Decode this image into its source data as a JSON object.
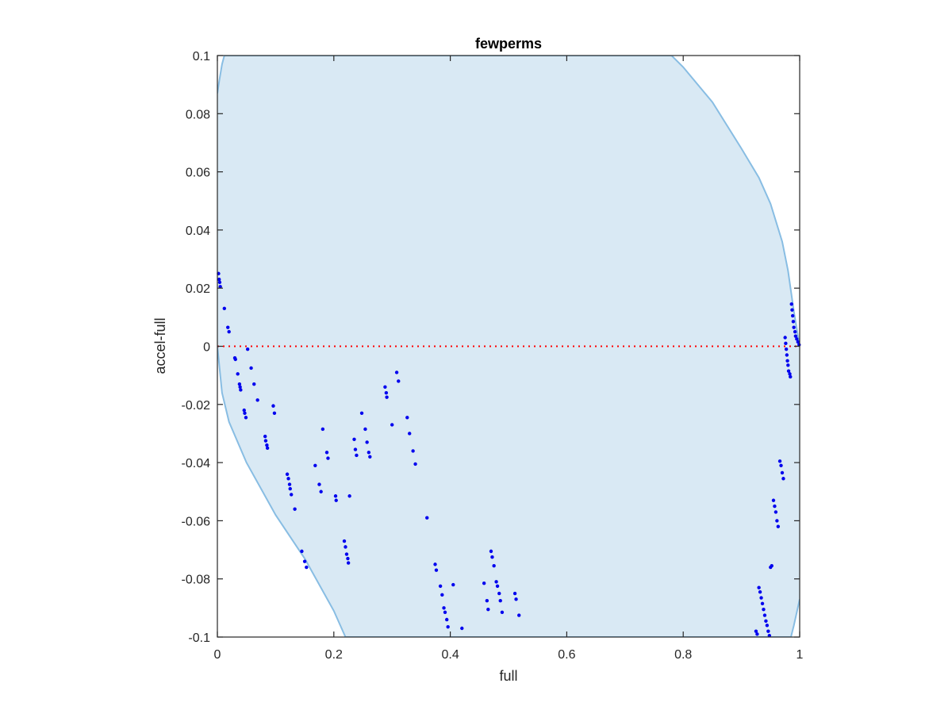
{
  "chart_data": {
    "type": "scatter",
    "title": "fewperms",
    "xlabel": "full",
    "ylabel": "accel-full",
    "xlim": [
      0,
      1
    ],
    "ylim": [
      -0.1,
      0.1
    ],
    "xticks": [
      0,
      0.2,
      0.4,
      0.6,
      0.8,
      1
    ],
    "xtick_labels": [
      "0",
      "0.2",
      "0.4",
      "0.6",
      "0.8",
      "1"
    ],
    "yticks": [
      -0.1,
      -0.08,
      -0.06,
      -0.04,
      -0.02,
      0,
      0.02,
      0.04,
      0.06,
      0.08,
      0.1
    ],
    "ytick_labels": [
      "-0.1",
      "-0.08",
      "-0.06",
      "-0.04",
      "-0.02",
      "0",
      "0.02",
      "0.04",
      "0.06",
      "0.08",
      "0.1"
    ],
    "grid": false,
    "reference_line": {
      "y": 0,
      "style": "dotted",
      "color": "#ff0000"
    },
    "colors": {
      "points": "#0000ee",
      "band_fill": "#d9e9f4",
      "band_edge": "#88bde3",
      "axes": "#262626"
    },
    "band": {
      "upper": [
        [
          0,
          0.087
        ],
        [
          0.003,
          0.091
        ],
        [
          0.008,
          0.097
        ],
        [
          0.012,
          0.1
        ],
        [
          0.78,
          0.1
        ],
        [
          0.8,
          0.096
        ],
        [
          0.85,
          0.084
        ],
        [
          0.9,
          0.068
        ],
        [
          0.93,
          0.058
        ],
        [
          0.95,
          0.049
        ],
        [
          0.97,
          0.036
        ],
        [
          0.98,
          0.026
        ],
        [
          0.99,
          0.012
        ],
        [
          1.0,
          0.0
        ]
      ],
      "lower": [
        [
          0,
          0.0
        ],
        [
          0.008,
          -0.016
        ],
        [
          0.02,
          -0.026
        ],
        [
          0.05,
          -0.04
        ],
        [
          0.1,
          -0.058
        ],
        [
          0.15,
          -0.073
        ],
        [
          0.2,
          -0.091
        ],
        [
          0.22,
          -0.1
        ],
        [
          0.985,
          -0.1
        ],
        [
          0.99,
          -0.096
        ],
        [
          1.0,
          -0.087
        ]
      ]
    },
    "points": [
      [
        0.002,
        0.025
      ],
      [
        0.003,
        0.023
      ],
      [
        0.004,
        0.022
      ],
      [
        0.005,
        0.0205
      ],
      [
        0.012,
        0.013
      ],
      [
        0.018,
        0.0065
      ],
      [
        0.02,
        0.005
      ],
      [
        0.03,
        -0.004
      ],
      [
        0.031,
        -0.0045
      ],
      [
        0.035,
        -0.0095
      ],
      [
        0.038,
        -0.013
      ],
      [
        0.039,
        -0.014
      ],
      [
        0.04,
        -0.015
      ],
      [
        0.046,
        -0.022
      ],
      [
        0.047,
        -0.023
      ],
      [
        0.049,
        -0.0245
      ],
      [
        0.052,
        -0.001
      ],
      [
        0.058,
        -0.0075
      ],
      [
        0.063,
        -0.013
      ],
      [
        0.069,
        -0.0185
      ],
      [
        0.082,
        -0.031
      ],
      [
        0.083,
        -0.0325
      ],
      [
        0.085,
        -0.034
      ],
      [
        0.086,
        -0.035
      ],
      [
        0.096,
        -0.0205
      ],
      [
        0.098,
        -0.023
      ],
      [
        0.12,
        -0.044
      ],
      [
        0.122,
        -0.0455
      ],
      [
        0.124,
        -0.0475
      ],
      [
        0.125,
        -0.049
      ],
      [
        0.127,
        -0.051
      ],
      [
        0.133,
        -0.056
      ],
      [
        0.145,
        -0.0705
      ],
      [
        0.15,
        -0.074
      ],
      [
        0.153,
        -0.076
      ],
      [
        0.168,
        -0.041
      ],
      [
        0.175,
        -0.0475
      ],
      [
        0.178,
        -0.05
      ],
      [
        0.181,
        -0.0285
      ],
      [
        0.188,
        -0.0365
      ],
      [
        0.19,
        -0.0385
      ],
      [
        0.203,
        -0.0515
      ],
      [
        0.204,
        -0.053
      ],
      [
        0.218,
        -0.067
      ],
      [
        0.22,
        -0.069
      ],
      [
        0.222,
        -0.0715
      ],
      [
        0.224,
        -0.073
      ],
      [
        0.225,
        -0.0745
      ],
      [
        0.227,
        -0.0515
      ],
      [
        0.235,
        -0.032
      ],
      [
        0.237,
        -0.0355
      ],
      [
        0.239,
        -0.0375
      ],
      [
        0.248,
        -0.023
      ],
      [
        0.254,
        -0.0285
      ],
      [
        0.257,
        -0.033
      ],
      [
        0.26,
        -0.0365
      ],
      [
        0.262,
        -0.038
      ],
      [
        0.288,
        -0.014
      ],
      [
        0.29,
        -0.016
      ],
      [
        0.291,
        -0.0175
      ],
      [
        0.3,
        -0.027
      ],
      [
        0.308,
        -0.009
      ],
      [
        0.311,
        -0.012
      ],
      [
        0.326,
        -0.0245
      ],
      [
        0.33,
        -0.03
      ],
      [
        0.336,
        -0.036
      ],
      [
        0.34,
        -0.0405
      ],
      [
        0.36,
        -0.059
      ],
      [
        0.374,
        -0.075
      ],
      [
        0.376,
        -0.077
      ],
      [
        0.383,
        -0.0825
      ],
      [
        0.386,
        -0.0855
      ],
      [
        0.389,
        -0.09
      ],
      [
        0.391,
        -0.0915
      ],
      [
        0.394,
        -0.094
      ],
      [
        0.396,
        -0.0965
      ],
      [
        0.405,
        -0.082
      ],
      [
        0.42,
        -0.097
      ],
      [
        0.458,
        -0.0815
      ],
      [
        0.463,
        -0.0875
      ],
      [
        0.465,
        -0.0905
      ],
      [
        0.47,
        -0.0705
      ],
      [
        0.472,
        -0.0725
      ],
      [
        0.475,
        -0.0755
      ],
      [
        0.479,
        -0.081
      ],
      [
        0.481,
        -0.0825
      ],
      [
        0.484,
        -0.085
      ],
      [
        0.486,
        -0.0875
      ],
      [
        0.489,
        -0.0915
      ],
      [
        0.511,
        -0.085
      ],
      [
        0.513,
        -0.087
      ],
      [
        0.518,
        -0.0925
      ],
      [
        0.925,
        -0.098
      ],
      [
        0.927,
        -0.099
      ],
      [
        0.93,
        -0.083
      ],
      [
        0.932,
        -0.0845
      ],
      [
        0.934,
        -0.0865
      ],
      [
        0.936,
        -0.0885
      ],
      [
        0.938,
        -0.0905
      ],
      [
        0.94,
        -0.0925
      ],
      [
        0.942,
        -0.0945
      ],
      [
        0.944,
        -0.096
      ],
      [
        0.946,
        -0.098
      ],
      [
        0.948,
        -0.0995
      ],
      [
        0.95,
        -0.076
      ],
      [
        0.952,
        -0.0755
      ],
      [
        0.955,
        -0.053
      ],
      [
        0.957,
        -0.055
      ],
      [
        0.959,
        -0.057
      ],
      [
        0.961,
        -0.06
      ],
      [
        0.963,
        -0.062
      ],
      [
        0.966,
        -0.0395
      ],
      [
        0.968,
        -0.041
      ],
      [
        0.97,
        -0.0435
      ],
      [
        0.972,
        -0.0455
      ],
      [
        0.975,
        0.003
      ],
      [
        0.976,
        0.001
      ],
      [
        0.977,
        -0.001
      ],
      [
        0.978,
        -0.003
      ],
      [
        0.979,
        -0.005
      ],
      [
        0.98,
        -0.0065
      ],
      [
        0.981,
        -0.0085
      ],
      [
        0.983,
        -0.0095
      ],
      [
        0.984,
        -0.0105
      ],
      [
        0.986,
        0.0145
      ],
      [
        0.987,
        0.0125
      ],
      [
        0.988,
        0.0105
      ],
      [
        0.989,
        0.0085
      ],
      [
        0.99,
        0.0065
      ],
      [
        0.992,
        0.005
      ],
      [
        0.993,
        0.0035
      ],
      [
        0.995,
        0.0025
      ],
      [
        0.997,
        0.0015
      ],
      [
        0.999,
        0.0005
      ]
    ]
  }
}
